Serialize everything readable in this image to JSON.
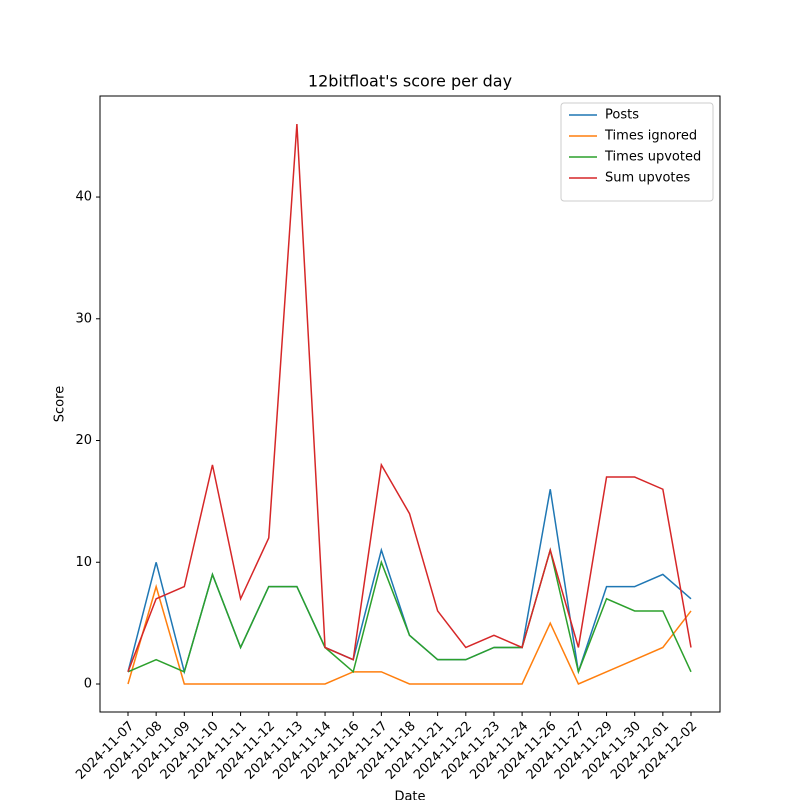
{
  "chart_data": {
    "type": "line",
    "title": "12bitfloat's score per day",
    "xlabel": "Date",
    "ylabel": "Score",
    "categories": [
      "2024-11-07",
      "2024-11-08",
      "2024-11-09",
      "2024-11-10",
      "2024-11-11",
      "2024-11-12",
      "2024-11-13",
      "2024-11-14",
      "2024-11-16",
      "2024-11-17",
      "2024-11-18",
      "2024-11-21",
      "2024-11-22",
      "2024-11-23",
      "2024-11-24",
      "2024-11-26",
      "2024-11-27",
      "2024-11-29",
      "2024-11-30",
      "2024-12-01",
      "2024-12-02"
    ],
    "series": [
      {
        "name": "Posts",
        "color": "#1f77b4",
        "values": [
          1,
          10,
          1,
          9,
          3,
          8,
          8,
          3,
          2,
          11,
          4,
          2,
          2,
          3,
          3,
          16,
          1,
          8,
          8,
          9,
          7
        ]
      },
      {
        "name": "Times ignored",
        "color": "#ff7f0e",
        "values": [
          0,
          8,
          0,
          0,
          0,
          0,
          0,
          0,
          1,
          1,
          0,
          0,
          0,
          0,
          0,
          5,
          0,
          1,
          2,
          3,
          6
        ]
      },
      {
        "name": "Times upvoted",
        "color": "#2ca02c",
        "values": [
          1,
          2,
          1,
          9,
          3,
          8,
          8,
          3,
          1,
          10,
          4,
          2,
          2,
          3,
          3,
          11,
          1,
          7,
          6,
          6,
          1
        ]
      },
      {
        "name": "Sum upvotes",
        "color": "#d62728",
        "values": [
          1,
          7,
          8,
          18,
          7,
          12,
          46,
          3,
          2,
          18,
          14,
          6,
          3,
          4,
          3,
          11,
          3,
          17,
          17,
          16,
          3
        ]
      }
    ],
    "ylim": [
      -2.3,
      48.3
    ],
    "yticks": [
      0,
      10,
      20,
      30,
      40
    ],
    "legend": "upper right"
  }
}
